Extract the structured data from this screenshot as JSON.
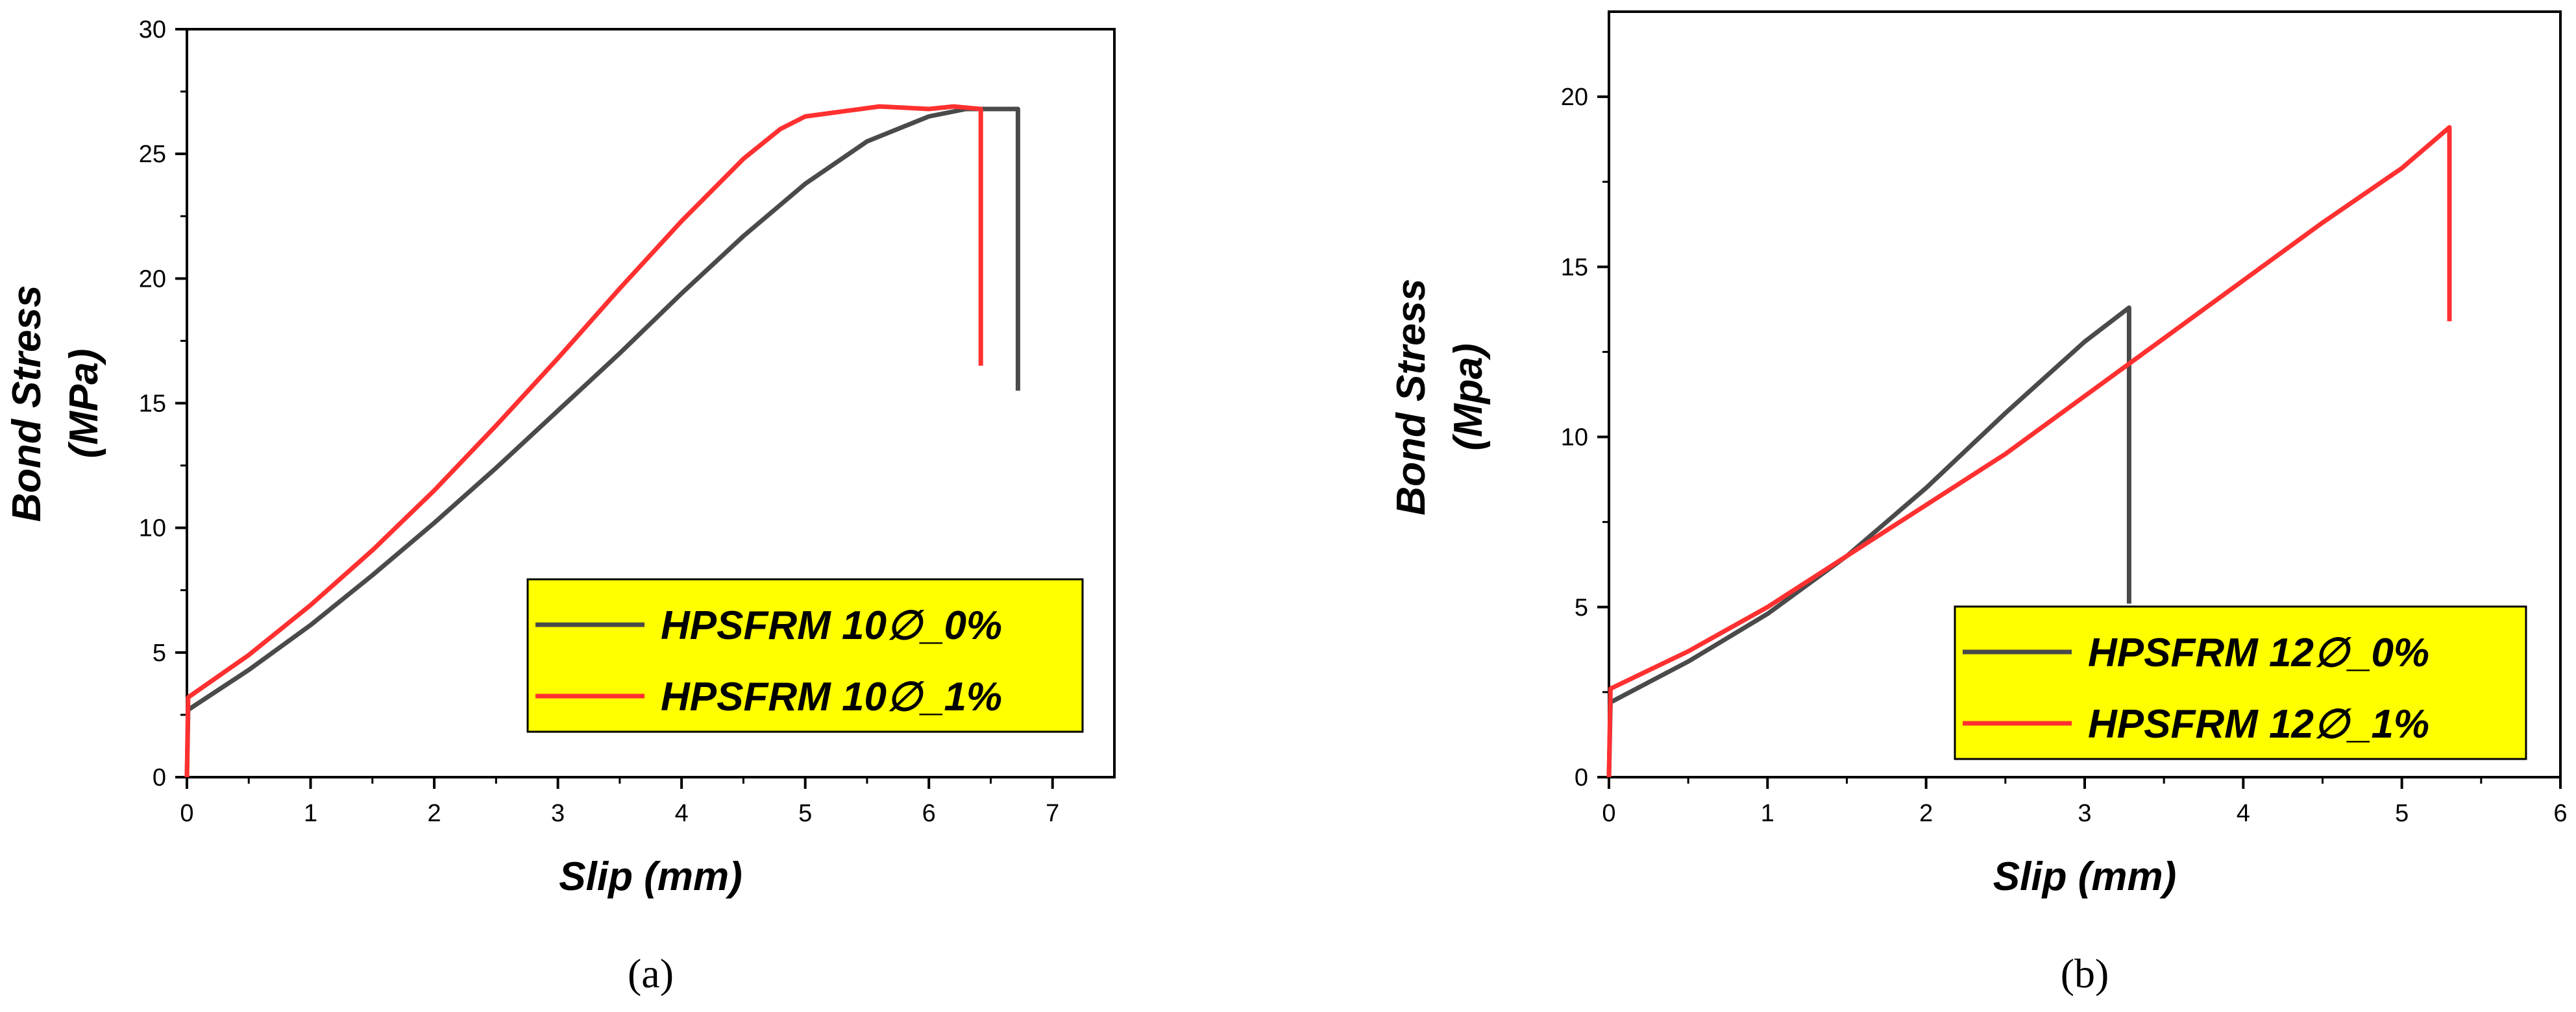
{
  "chart_data": [
    {
      "type": "line",
      "caption": "(a)",
      "xlabel": "Slip (mm)",
      "ylabel_line1": "Bond Stress",
      "ylabel_line2": "(MPa)",
      "xlim": [
        0,
        7.5
      ],
      "ylim": [
        0,
        30
      ],
      "xticks": [
        0,
        1,
        2,
        3,
        4,
        5,
        6,
        7
      ],
      "yticks": [
        0,
        5,
        10,
        15,
        20,
        25,
        30
      ],
      "grid": false,
      "legend_position": "bottom-right",
      "legend_background": "#ffff00",
      "series": [
        {
          "name": "HPSFRM 10∅_0%",
          "color": "#4a4a4a",
          "x": [
            0,
            0.01,
            0.5,
            1.0,
            1.5,
            2.0,
            2.5,
            3.0,
            3.5,
            4.0,
            4.5,
            5.0,
            5.5,
            6.0,
            6.3,
            6.5,
            6.7,
            6.72,
            6.72
          ],
          "y": [
            0,
            2.7,
            4.3,
            6.1,
            8.1,
            10.2,
            12.4,
            14.7,
            17.0,
            19.4,
            21.7,
            23.8,
            25.5,
            26.5,
            26.8,
            26.8,
            26.8,
            26.8,
            15.5
          ]
        },
        {
          "name": "HPSFRM 10∅_1%",
          "color": "#ff3030",
          "x": [
            0,
            0.01,
            0.5,
            1.0,
            1.5,
            2.0,
            2.5,
            3.0,
            3.5,
            4.0,
            4.5,
            4.8,
            5.0,
            5.3,
            5.6,
            6.0,
            6.2,
            6.42,
            6.42
          ],
          "y": [
            0,
            3.2,
            4.9,
            6.9,
            9.1,
            11.5,
            14.1,
            16.8,
            19.6,
            22.3,
            24.8,
            26.0,
            26.5,
            26.7,
            26.9,
            26.8,
            26.9,
            26.8,
            16.5
          ]
        }
      ]
    },
    {
      "type": "line",
      "caption": "(b)",
      "xlabel": "Slip (mm)",
      "ylabel_line1": "Bond Stress",
      "ylabel_line2": "(Mpa)",
      "xlim": [
        0,
        6
      ],
      "ylim": [
        0,
        22.5
      ],
      "xticks": [
        0,
        1,
        2,
        3,
        4,
        5,
        6
      ],
      "yticks": [
        0,
        5,
        10,
        15,
        20
      ],
      "grid": false,
      "legend_position": "bottom-right",
      "legend_background": "#ffff00",
      "series": [
        {
          "name": "HPSFRM 12∅_0%",
          "color": "#4a4a4a",
          "x": [
            0,
            0.01,
            0.5,
            1.0,
            1.5,
            2.0,
            2.5,
            3.0,
            3.28,
            3.28
          ],
          "y": [
            0,
            2.2,
            3.4,
            4.8,
            6.5,
            8.5,
            10.7,
            12.8,
            13.8,
            5.1
          ]
        },
        {
          "name": "HPSFRM 12∅_1%",
          "color": "#ff3030",
          "x": [
            0,
            0.01,
            0.5,
            1.0,
            1.5,
            2.0,
            2.5,
            3.0,
            3.5,
            4.0,
            4.5,
            5.0,
            5.3,
            5.3
          ],
          "y": [
            0,
            2.6,
            3.7,
            5.0,
            6.5,
            8.0,
            9.5,
            11.2,
            12.9,
            14.6,
            16.3,
            17.9,
            19.1,
            13.4
          ]
        }
      ]
    }
  ]
}
